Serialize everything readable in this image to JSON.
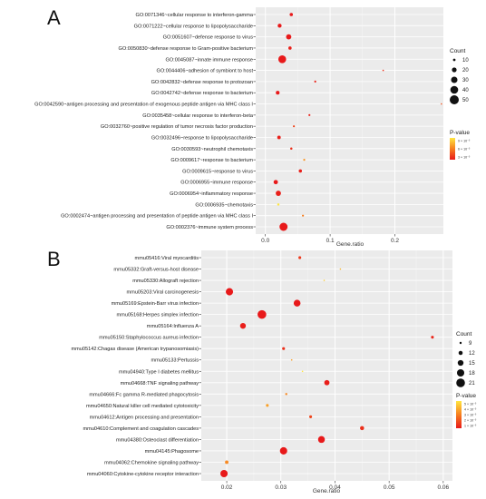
{
  "chart_data": [
    {
      "type": "scatter",
      "panel_label": "A",
      "xlabel": "Gene.ratio",
      "ylabel": "",
      "xlim": [
        -0.015,
        0.275
      ],
      "xticks": [
        0.0,
        0.1,
        0.2
      ],
      "tick_labels": [
        "0.0",
        "0.1",
        "0.2"
      ],
      "grid": true,
      "size_legend": {
        "title": "Count",
        "values": [
          10,
          20,
          30,
          40,
          50
        ],
        "labels": [
          "10",
          "20",
          "30",
          "40",
          "50"
        ]
      },
      "color_legend": {
        "title": "P-value",
        "labels": [
          "9 × 10⁻³",
          "6 × 10⁻³",
          "3 × 10⁻³"
        ],
        "colors": [
          "#ffe640",
          "#f77f1f",
          "#e8191a"
        ]
      },
      "points": [
        {
          "term": "GO:0071346~cellular response to interferon-gamma",
          "ratio": 0.04,
          "count": 13,
          "p": 0.0005
        },
        {
          "term": "GO:0071222~cellular response to lipopolysaccharide",
          "ratio": 0.022,
          "count": 16,
          "p": 0.0005
        },
        {
          "term": "GO:0051607~defense response to virus",
          "ratio": 0.036,
          "count": 23,
          "p": 0.0005
        },
        {
          "term": "GO:0050830~defense response to Gram-positive bacterium",
          "ratio": 0.038,
          "count": 13,
          "p": 0.0008
        },
        {
          "term": "GO:0045087~innate immune response",
          "ratio": 0.026,
          "count": 40,
          "p": 0.0005
        },
        {
          "term": "GO:0044406~adhesion of symbiont to host",
          "ratio": 0.182,
          "count": 6,
          "p": 0.0015
        },
        {
          "term": "GO:0042832~defense response to protozoan",
          "ratio": 0.077,
          "count": 8,
          "p": 0.001
        },
        {
          "term": "GO:0042742~defense response to bacterium",
          "ratio": 0.019,
          "count": 15,
          "p": 0.0005
        },
        {
          "term": "GO:0042590~antigen processing and presentation of exogenous peptide antigen via MHC class I",
          "ratio": 0.272,
          "count": 5,
          "p": 0.003
        },
        {
          "term": "GO:0035458~cellular response to interferon-beta",
          "ratio": 0.068,
          "count": 8,
          "p": 0.001
        },
        {
          "term": "GO:0032760~positive regulation of tumor necrosis factor production",
          "ratio": 0.044,
          "count": 8,
          "p": 0.0025
        },
        {
          "term": "GO:0032496~response to lipopolysaccharide",
          "ratio": 0.021,
          "count": 14,
          "p": 0.0008
        },
        {
          "term": "GO:0030593~neutrophil chemotaxis",
          "ratio": 0.04,
          "count": 9,
          "p": 0.0015
        },
        {
          "term": "GO:0009617~response to bacterium",
          "ratio": 0.06,
          "count": 8,
          "p": 0.006
        },
        {
          "term": "GO:0009615~response to virus",
          "ratio": 0.054,
          "count": 13,
          "p": 0.0008
        },
        {
          "term": "GO:0006955~immune response",
          "ratio": 0.016,
          "count": 18,
          "p": 0.0005
        },
        {
          "term": "GO:0006954~inflammatory response",
          "ratio": 0.02,
          "count": 23,
          "p": 0.0008
        },
        {
          "term": "GO:0006935~chemotaxis",
          "ratio": 0.02,
          "count": 9,
          "p": 0.0095
        },
        {
          "term": "GO:0002474~antigen processing and presentation of peptide antigen via MHC class I",
          "ratio": 0.058,
          "count": 8,
          "p": 0.005
        },
        {
          "term": "GO:0002376~immune system process",
          "ratio": 0.028,
          "count": 42,
          "p": 0.0005
        }
      ]
    },
    {
      "type": "scatter",
      "panel_label": "B",
      "xlabel": "Gene.ratio",
      "ylabel": "",
      "xlim": [
        0.0153,
        0.0617
      ],
      "xticks": [
        0.02,
        0.03,
        0.04,
        0.05,
        0.06
      ],
      "tick_labels": [
        "0.02",
        "0.03",
        "0.04",
        "0.05",
        "0.06"
      ],
      "grid": true,
      "size_legend": {
        "title": "Count",
        "values": [
          9,
          12,
          15,
          18,
          21
        ],
        "labels": [
          "9",
          "12",
          "15",
          "18",
          "21"
        ]
      },
      "color_legend": {
        "title": "P-value",
        "labels": [
          "5 × 10⁻³",
          "4 × 10⁻³",
          "3 × 10⁻³",
          "2 × 10⁻³",
          "1 × 10⁻³"
        ],
        "colors": [
          "#ffe640",
          "#f9b02c",
          "#f77f1f",
          "#ef4c1c",
          "#e8191a"
        ]
      },
      "points": [
        {
          "term": "mmu05416:Viral myocarditis",
          "ratio": 0.0335,
          "count": 10,
          "p": 0.0012
        },
        {
          "term": "mmu05332:Graft-versus-host disease",
          "ratio": 0.041,
          "count": 7,
          "p": 0.004
        },
        {
          "term": "mmu05330:Allograft rejection",
          "ratio": 0.038,
          "count": 6,
          "p": 0.0045
        },
        {
          "term": "mmu05203:Viral carcinogenesis",
          "ratio": 0.0205,
          "count": 18,
          "p": 0.0005
        },
        {
          "term": "mmu05169:Epstein-Barr virus infection",
          "ratio": 0.033,
          "count": 17,
          "p": 0.0005
        },
        {
          "term": "mmu05168:Herpes simplex infection",
          "ratio": 0.0265,
          "count": 21,
          "p": 0.0005
        },
        {
          "term": "mmu05164:Influenza A",
          "ratio": 0.023,
          "count": 15,
          "p": 0.0006
        },
        {
          "term": "mmu05150:Staphylococcus aureus infection",
          "ratio": 0.058,
          "count": 10,
          "p": 0.0008
        },
        {
          "term": "mmu05142:Chagas disease (American trypanosomiasis)",
          "ratio": 0.0305,
          "count": 10,
          "p": 0.001
        },
        {
          "term": "mmu05133:Pertussis",
          "ratio": 0.032,
          "count": 8,
          "p": 0.0035
        },
        {
          "term": "mmu04940:Type I diabetes mellitus",
          "ratio": 0.034,
          "count": 6,
          "p": 0.005
        },
        {
          "term": "mmu04668:TNF signaling pathway",
          "ratio": 0.0385,
          "count": 14,
          "p": 0.0006
        },
        {
          "term": "mmu04666:Fc gamma R-mediated phagocytosis",
          "ratio": 0.031,
          "count": 9,
          "p": 0.003
        },
        {
          "term": "mmu04650:Natural killer cell mediated cytotoxicity",
          "ratio": 0.0275,
          "count": 10,
          "p": 0.0035
        },
        {
          "term": "mmu04612:Antigen processing and presentation",
          "ratio": 0.0355,
          "count": 10,
          "p": 0.0015
        },
        {
          "term": "mmu04610:Complement and coagulation cascades",
          "ratio": 0.045,
          "count": 12,
          "p": 0.001
        },
        {
          "term": "mmu04380:Osteoclast differentiation",
          "ratio": 0.0375,
          "count": 17,
          "p": 0.0005
        },
        {
          "term": "mmu04145:Phagosome",
          "ratio": 0.0305,
          "count": 18,
          "p": 0.0005
        },
        {
          "term": "mmu04062:Chemokine signaling pathway",
          "ratio": 0.02,
          "count": 11,
          "p": 0.003
        },
        {
          "term": "mmu04060:Cytokine-cytokine receptor interaction",
          "ratio": 0.0195,
          "count": 18,
          "p": 0.0005
        }
      ]
    }
  ]
}
